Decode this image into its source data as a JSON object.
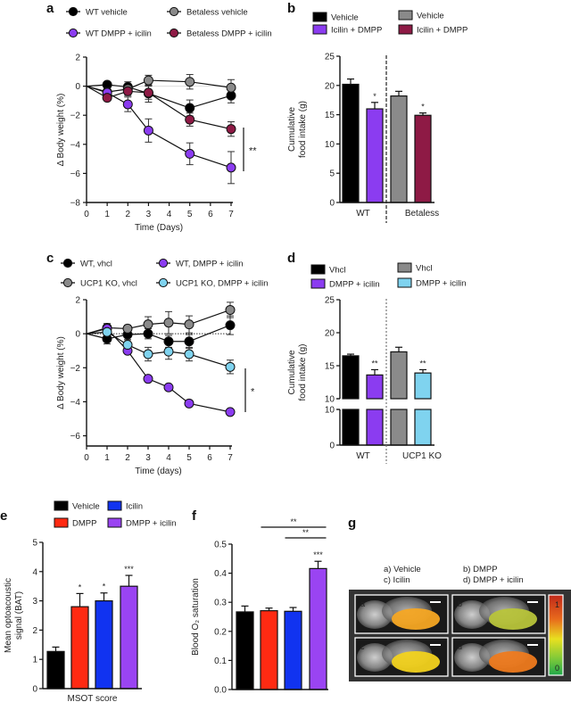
{
  "panel_labels": {
    "a": "a",
    "b": "b",
    "c": "c",
    "d": "d",
    "e": "e",
    "f": "f",
    "g": "g"
  },
  "colors": {
    "black": "#000000",
    "gray": "#8a8a8a",
    "purple": "#8b3cf0",
    "maroon": "#8e1a45",
    "lightblue": "#7fd3ef",
    "red": "#ff2a12",
    "blue": "#1133f0",
    "dmpp_icilin": "#9a44f2"
  },
  "chart_data": [
    {
      "id": "a",
      "type": "line",
      "xlabel": "Time (Days)",
      "ylabel": "Δ Body weight (%)",
      "xlim": [
        0,
        7
      ],
      "ylim": [
        -8,
        2
      ],
      "xticks": [
        "0",
        "1",
        "2",
        "3",
        "4",
        "5",
        "6",
        "7"
      ],
      "yticks": [
        "2",
        "0",
        "−2",
        "−4",
        "−6",
        "−8"
      ],
      "significance": "**",
      "series": [
        {
          "name": "WT vehicle",
          "color": "#000000",
          "x": [
            0,
            1,
            2,
            3,
            5,
            7
          ],
          "y": [
            0,
            0.1,
            -0.05,
            -0.5,
            -1.5,
            -0.65
          ],
          "err": [
            0,
            0.2,
            0.35,
            0.6,
            0.55,
            0.5
          ]
        },
        {
          "name": "Betaless vehicle",
          "color": "#8a8a8a",
          "x": [
            0,
            1,
            2,
            3,
            5,
            7
          ],
          "y": [
            0,
            -0.4,
            -0.2,
            0.4,
            0.3,
            -0.1
          ],
          "err": [
            0,
            0.2,
            0.3,
            0.35,
            0.5,
            0.55
          ]
        },
        {
          "name": "WT DMPP + icilin",
          "color": "#8b3cf0",
          "x": [
            0,
            1,
            2,
            3,
            5,
            7
          ],
          "y": [
            0,
            -0.45,
            -1.25,
            -3.05,
            -4.65,
            -5.6
          ],
          "err": [
            0,
            0.25,
            0.5,
            0.8,
            0.75,
            1.1
          ]
        },
        {
          "name": "Betaless DMPP + icilin",
          "color": "#8e1a45",
          "x": [
            0,
            1,
            2,
            3,
            5,
            7
          ],
          "y": [
            0,
            -0.8,
            -0.35,
            -0.45,
            -2.3,
            -2.95
          ],
          "err": [
            0,
            0.2,
            0.3,
            0.45,
            0.45,
            0.5
          ]
        }
      ]
    },
    {
      "id": "b",
      "type": "bar",
      "ylabel": "Cumulative food intake (g)",
      "ylim": [
        0,
        25
      ],
      "yticks": [
        "0",
        "5",
        "10",
        "15",
        "20",
        "25"
      ],
      "groups": [
        "WT",
        "Betaless"
      ],
      "legend": [
        {
          "label": "Vehicle",
          "color": "#000000"
        },
        {
          "label": "Icilin + DMPP",
          "color": "#8b3cf0"
        },
        {
          "label": "Vehicle",
          "color": "#8a8a8a"
        },
        {
          "label": "Icilin + DMPP",
          "color": "#8e1a45"
        }
      ],
      "bars": [
        {
          "group": "WT",
          "name": "Vehicle",
          "value": 20.2,
          "err": 0.9,
          "color": "#000000",
          "sig": ""
        },
        {
          "group": "WT",
          "name": "Icilin + DMPP",
          "value": 16.0,
          "err": 1.1,
          "color": "#8b3cf0",
          "sig": "*"
        },
        {
          "group": "Betaless",
          "name": "Vehicle",
          "value": 18.2,
          "err": 0.8,
          "color": "#8a8a8a",
          "sig": ""
        },
        {
          "group": "Betaless",
          "name": "Icilin + DMPP",
          "value": 14.9,
          "err": 0.4,
          "color": "#8e1a45",
          "sig": "*"
        }
      ]
    },
    {
      "id": "c",
      "type": "line",
      "xlabel": "Time (days)",
      "ylabel": "Δ Body weight (%)",
      "xlim": [
        0,
        7
      ],
      "ylim": [
        -6.6,
        2
      ],
      "xticks": [
        "0",
        "1",
        "2",
        "3",
        "4",
        "5",
        "6",
        "7"
      ],
      "yticks": [
        "2",
        "0",
        "−2",
        "−4",
        "−6"
      ],
      "significance": "*",
      "series": [
        {
          "name": "WT, vhcl",
          "color": "#000000",
          "x": [
            0,
            1,
            2,
            3,
            4,
            5,
            7
          ],
          "y": [
            0,
            -0.3,
            -0.05,
            0,
            -0.45,
            -0.45,
            0.5
          ],
          "err": [
            0,
            0.3,
            0.3,
            0.3,
            0.35,
            0.4,
            0.55
          ]
        },
        {
          "name": "UCP1 KO, vhcl",
          "color": "#8a8a8a",
          "x": [
            0,
            1,
            2,
            3,
            4,
            5,
            7
          ],
          "y": [
            0,
            0.35,
            0.3,
            0.55,
            0.65,
            0.55,
            1.4
          ],
          "err": [
            0,
            0.25,
            0.2,
            0.45,
            0.65,
            0.5,
            0.45
          ]
        },
        {
          "name": "WT, DMPP + icilin",
          "color": "#8b3cf0",
          "x": [
            0,
            1,
            2,
            3,
            4,
            5,
            7
          ],
          "y": [
            0,
            0.3,
            -1.0,
            -2.65,
            -3.15,
            -4.1,
            -4.6
          ],
          "err": [
            0,
            0.1,
            0.1,
            0.1,
            0.1,
            0.1,
            0.1
          ]
        },
        {
          "name": "UCP1 KO, DMPP + icilin",
          "color": "#7fd3ef",
          "x": [
            0,
            1,
            2,
            3,
            4,
            5,
            7
          ],
          "y": [
            0,
            0.1,
            -0.65,
            -1.2,
            -1.05,
            -1.2,
            -1.95
          ],
          "err": [
            0,
            0.2,
            0.3,
            0.4,
            0.45,
            0.4,
            0.4
          ]
        }
      ]
    },
    {
      "id": "d",
      "type": "bar",
      "ylabel": "Cumulative food intake (g)",
      "ylim": [
        0,
        25
      ],
      "axis_break": [
        10,
        10
      ],
      "yticks_upper": [
        "10",
        "15",
        "20",
        "25"
      ],
      "yticks_lower": [
        "0",
        "10"
      ],
      "groups": [
        "WT",
        "UCP1 KO"
      ],
      "legend": [
        {
          "label": "Vhcl",
          "color": "#000000"
        },
        {
          "label": "DMPP + icilin",
          "color": "#8b3cf0"
        },
        {
          "label": "Vhcl",
          "color": "#8a8a8a"
        },
        {
          "label": "DMPP + icilin",
          "color": "#7fd3ef"
        }
      ],
      "bars": [
        {
          "group": "WT",
          "name": "Vhcl",
          "value": 16.5,
          "err": 0.25,
          "color": "#000000",
          "sig": ""
        },
        {
          "group": "WT",
          "name": "DMPP + icilin",
          "value": 13.6,
          "err": 0.8,
          "color": "#8b3cf0",
          "sig": "**"
        },
        {
          "group": "UCP1 KO",
          "name": "Vhcl",
          "value": 17.1,
          "err": 0.7,
          "color": "#8a8a8a",
          "sig": ""
        },
        {
          "group": "UCP1 KO",
          "name": "DMPP + icilin",
          "value": 13.9,
          "err": 0.5,
          "color": "#7fd3ef",
          "sig": "**"
        }
      ]
    },
    {
      "id": "e",
      "type": "bar",
      "xlabel": "MSOT score",
      "ylabel": "Mean optoacoustic signal (BAT)",
      "ylim": [
        0,
        5
      ],
      "yticks": [
        "0",
        "1",
        "2",
        "3",
        "4",
        "5"
      ],
      "legend": [
        {
          "label": "Vehicle",
          "color": "#000000"
        },
        {
          "label": "Icilin",
          "color": "#1133f0"
        },
        {
          "label": "DMPP",
          "color": "#ff2a12"
        },
        {
          "label": "DMPP + icilin",
          "color": "#9a44f2"
        }
      ],
      "bars": [
        {
          "name": "Vehicle",
          "value": 1.27,
          "err": 0.15,
          "color": "#000000",
          "sig": ""
        },
        {
          "name": "DMPP",
          "value": 2.8,
          "err": 0.45,
          "color": "#ff2a12",
          "sig": "*"
        },
        {
          "name": "Icilin",
          "value": 3.0,
          "err": 0.27,
          "color": "#1133f0",
          "sig": "*"
        },
        {
          "name": "DMPP + icilin",
          "value": 3.5,
          "err": 0.37,
          "color": "#9a44f2",
          "sig": "***"
        }
      ]
    },
    {
      "id": "f",
      "type": "bar",
      "ylabel": "Blood O₂ saturation",
      "ylim": [
        0,
        0.5
      ],
      "yticks": [
        "0.0",
        "0.1",
        "0.2",
        "0.3",
        "0.4",
        "0.5"
      ],
      "bars": [
        {
          "name": "Vehicle",
          "value": 0.267,
          "err": 0.02,
          "color": "#000000",
          "sig": ""
        },
        {
          "name": "DMPP",
          "value": 0.271,
          "err": 0.009,
          "color": "#ff2a12",
          "sig": ""
        },
        {
          "name": "Icilin",
          "value": 0.269,
          "err": 0.013,
          "color": "#1133f0",
          "sig": ""
        },
        {
          "name": "DMPP + icilin",
          "value": 0.416,
          "err": 0.025,
          "color": "#9a44f2",
          "sig": "***"
        }
      ],
      "brackets": [
        {
          "from": "DMPP",
          "to": "DMPP + icilin",
          "label": "**"
        },
        {
          "from": "Icilin",
          "to": "DMPP + icilin",
          "label": "**"
        }
      ]
    }
  ],
  "panel_g": {
    "legend": [
      "a) Vehicle",
      "b) DMPP",
      "c) Icilin",
      "d) DMPP + icilin"
    ],
    "tiles": [
      {
        "label": "a",
        "overlay": "#f5a623"
      },
      {
        "label": "b",
        "overlay": "#b8c43a"
      },
      {
        "label": "c",
        "overlay": "#f2d21e"
      },
      {
        "label": "d",
        "overlay": "#ee7a1e"
      }
    ],
    "colorbar": {
      "max": "1",
      "min": "0"
    }
  }
}
